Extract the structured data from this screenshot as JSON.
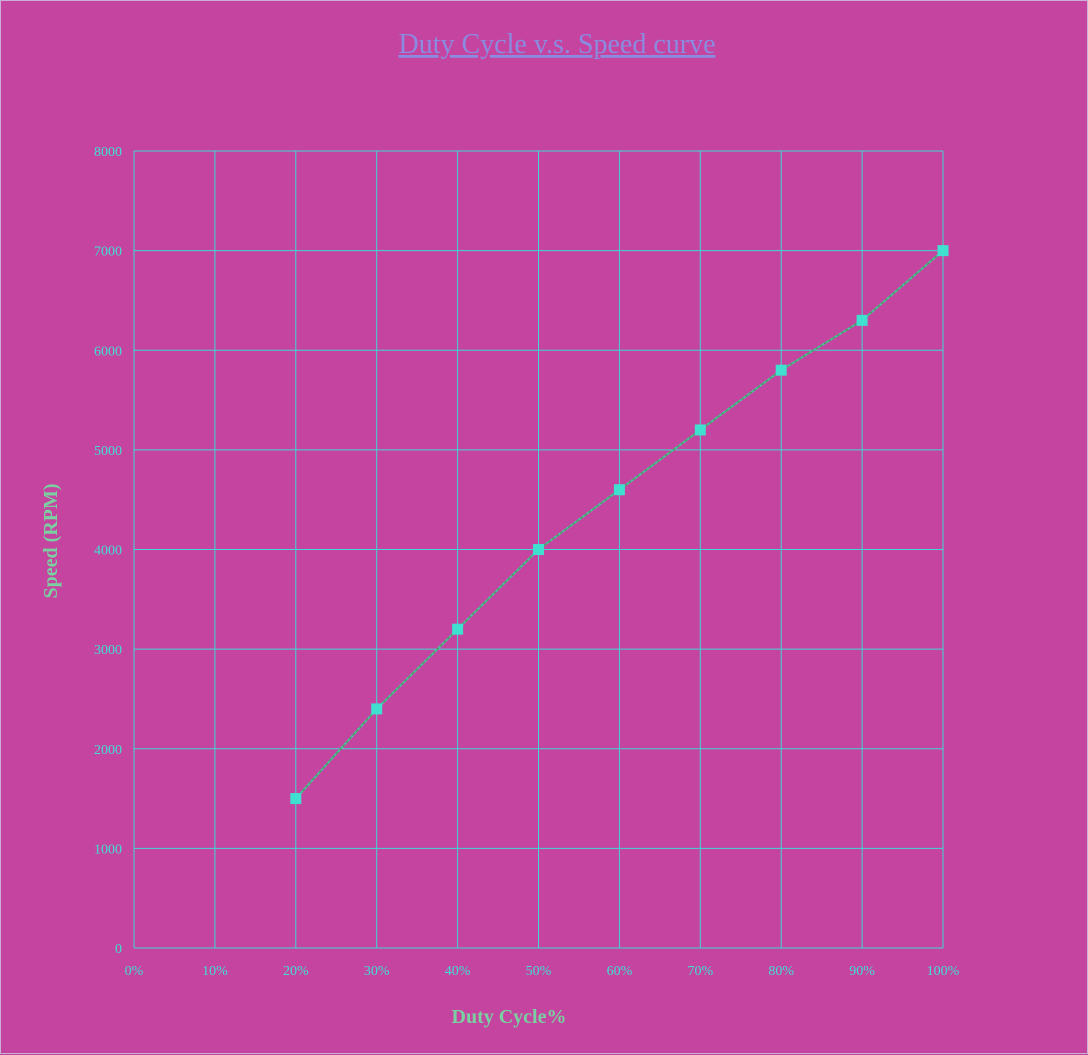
{
  "chart_data": {
    "type": "line",
    "title": "Duty  Cycle v.s. Speed curve",
    "xlabel": "Duty Cycle%",
    "ylabel": "Speed (RPM)",
    "x_tick_labels": [
      "0%",
      "10%",
      "20%",
      "30%",
      "40%",
      "50%",
      "60%",
      "70%",
      "80%",
      "90%",
      "100%"
    ],
    "y_tick_labels": [
      "0",
      "1000",
      "2000",
      "3000",
      "4000",
      "5000",
      "6000",
      "7000",
      "8000"
    ],
    "xlim": [
      0,
      100
    ],
    "ylim": [
      0,
      8000
    ],
    "grid": true,
    "series": [
      {
        "x": [
          20,
          30,
          40,
          50,
          60,
          70,
          80,
          90,
          100
        ],
        "values": [
          1500,
          2400,
          3200,
          4000,
          4600,
          5200,
          5800,
          6300,
          7000
        ]
      }
    ],
    "colors": {
      "background": "#c444a0",
      "grid": "#40d8d0",
      "line": "#40c8a8",
      "marker": "#40e0d0",
      "title": "#8b8be0"
    }
  }
}
